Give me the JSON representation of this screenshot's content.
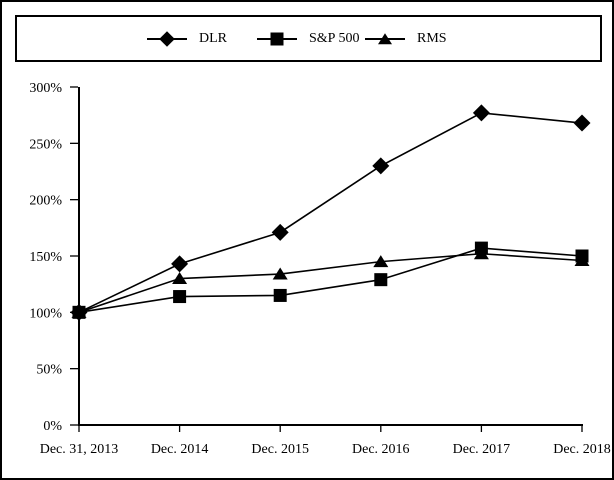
{
  "legend": {
    "items": [
      {
        "label": "DLR",
        "marker": "diamond"
      },
      {
        "label": "S&P 500",
        "marker": "square"
      },
      {
        "label": "RMS",
        "marker": "triangle"
      }
    ]
  },
  "chart_data": {
    "type": "line",
    "title": "",
    "categories": [
      "Dec. 31, 2013",
      "Dec. 2014",
      "Dec. 2015",
      "Dec. 2016",
      "Dec. 2017",
      "Dec. 2018"
    ],
    "series": [
      {
        "name": "DLR",
        "marker": "diamond",
        "values": [
          100,
          143,
          171,
          230,
          277,
          268
        ]
      },
      {
        "name": "S&P 500",
        "marker": "square",
        "values": [
          100,
          114,
          115,
          129,
          157,
          150
        ]
      },
      {
        "name": "RMS",
        "marker": "triangle",
        "values": [
          100,
          130,
          134,
          145,
          152,
          146
        ]
      }
    ],
    "y_ticks": [
      {
        "value": 300,
        "label": "300%"
      },
      {
        "value": 250,
        "label": "250%"
      },
      {
        "value": 200,
        "label": "200%"
      },
      {
        "value": 150,
        "label": "150%"
      },
      {
        "value": 100,
        "label": "100%"
      },
      {
        "value": 50,
        "label": "50%"
      },
      {
        "value": 0,
        "label": "0%"
      }
    ],
    "xlabel": "",
    "ylabel": "",
    "ylim": [
      0,
      300
    ],
    "grid": false,
    "legend_position": "top",
    "series_color": "#000000",
    "background_color": "#ffffff"
  }
}
